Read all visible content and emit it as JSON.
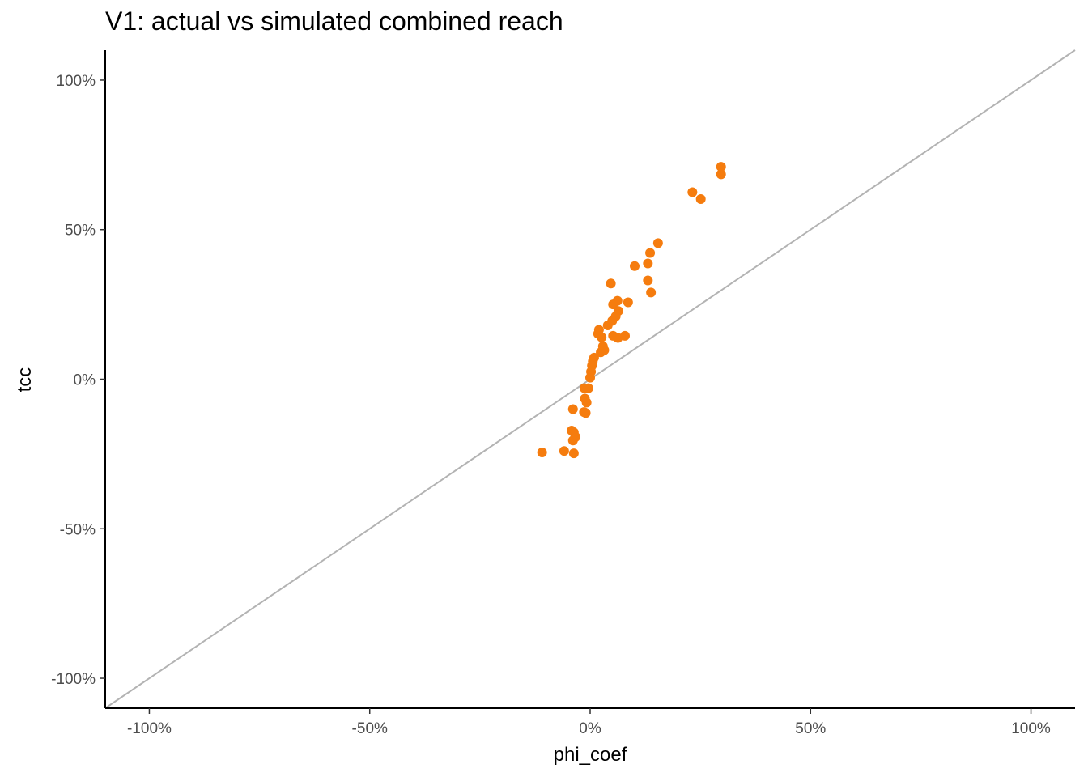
{
  "chart_data": {
    "type": "scatter",
    "title": "V1: actual vs simulated combined reach",
    "xlabel": "phi_coef",
    "ylabel": "tcc",
    "xlim": [
      -1.1,
      1.1
    ],
    "ylim": [
      -1.1,
      1.1
    ],
    "x_ticks": [
      -1.0,
      -0.5,
      0.0,
      0.5,
      1.0
    ],
    "x_tick_labels": [
      "-100%",
      "-50%",
      "0%",
      "50%",
      "100%"
    ],
    "y_ticks": [
      -1.0,
      -0.5,
      0.0,
      0.5,
      1.0
    ],
    "y_tick_labels": [
      "-100%",
      "-50%",
      "0%",
      "50%",
      "100%"
    ],
    "grid": false,
    "reference_line": {
      "slope": 1,
      "intercept": 0,
      "color": "#b3b3b3"
    },
    "point_color": "#f57c0e",
    "points": [
      {
        "x": 0.297,
        "y": 0.71
      },
      {
        "x": 0.297,
        "y": 0.685
      },
      {
        "x": 0.232,
        "y": 0.625
      },
      {
        "x": 0.251,
        "y": 0.602
      },
      {
        "x": 0.154,
        "y": 0.455
      },
      {
        "x": 0.136,
        "y": 0.422
      },
      {
        "x": 0.131,
        "y": 0.387
      },
      {
        "x": 0.101,
        "y": 0.378
      },
      {
        "x": 0.131,
        "y": 0.33
      },
      {
        "x": 0.138,
        "y": 0.29
      },
      {
        "x": 0.047,
        "y": 0.32
      },
      {
        "x": 0.062,
        "y": 0.262
      },
      {
        "x": 0.086,
        "y": 0.257
      },
      {
        "x": 0.052,
        "y": 0.25
      },
      {
        "x": 0.064,
        "y": 0.228
      },
      {
        "x": 0.058,
        "y": 0.21
      },
      {
        "x": 0.05,
        "y": 0.195
      },
      {
        "x": 0.04,
        "y": 0.18
      },
      {
        "x": 0.02,
        "y": 0.165
      },
      {
        "x": 0.018,
        "y": 0.152
      },
      {
        "x": 0.026,
        "y": 0.14
      },
      {
        "x": 0.052,
        "y": 0.145
      },
      {
        "x": 0.063,
        "y": 0.138
      },
      {
        "x": 0.079,
        "y": 0.145
      },
      {
        "x": 0.029,
        "y": 0.11
      },
      {
        "x": 0.032,
        "y": 0.097
      },
      {
        "x": 0.024,
        "y": 0.09
      },
      {
        "x": 0.009,
        "y": 0.072
      },
      {
        "x": 0.006,
        "y": 0.06
      },
      {
        "x": 0.004,
        "y": 0.045
      },
      {
        "x": 0.002,
        "y": 0.025
      },
      {
        "x": 0.0,
        "y": 0.005
      },
      {
        "x": -0.004,
        "y": -0.03
      },
      {
        "x": -0.013,
        "y": -0.03
      },
      {
        "x": -0.012,
        "y": -0.065
      },
      {
        "x": -0.008,
        "y": -0.078
      },
      {
        "x": -0.014,
        "y": -0.11
      },
      {
        "x": -0.01,
        "y": -0.113
      },
      {
        "x": -0.039,
        "y": -0.1
      },
      {
        "x": -0.042,
        "y": -0.172
      },
      {
        "x": -0.037,
        "y": -0.178
      },
      {
        "x": -0.033,
        "y": -0.193
      },
      {
        "x": -0.039,
        "y": -0.205
      },
      {
        "x": -0.059,
        "y": -0.24
      },
      {
        "x": -0.109,
        "y": -0.245
      },
      {
        "x": -0.037,
        "y": -0.248
      }
    ]
  }
}
